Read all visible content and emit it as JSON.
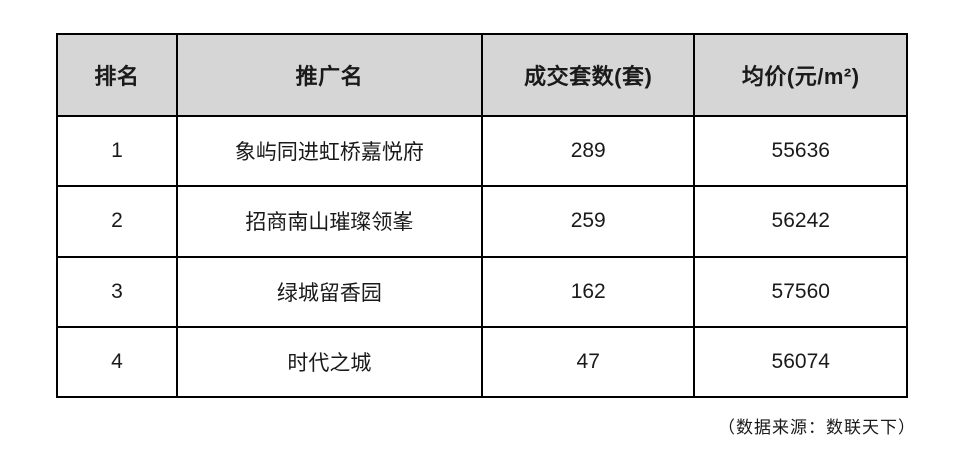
{
  "chart_data": {
    "type": "table",
    "title": "",
    "columns": [
      "排名",
      "推广名",
      "成交套数(套)",
      "均价(元/m²)"
    ],
    "rows": [
      {
        "rank": "1",
        "name": "象屿同进虹桥嘉悦府",
        "deals": "289",
        "price": "55636"
      },
      {
        "rank": "2",
        "name": "招商南山璀璨领峯",
        "deals": "259",
        "price": "56242"
      },
      {
        "rank": "3",
        "name": "绿城留香园",
        "deals": "162",
        "price": "57560"
      },
      {
        "rank": "4",
        "name": "时代之城",
        "deals": "47",
        "price": "56074"
      }
    ],
    "source_note": "（数据来源：数联天下）",
    "layout_hints": {
      "header_bg": "#d6d6d6",
      "border_color": "#000000",
      "text_color": "#1a1a1a",
      "background": "#ffffff"
    }
  },
  "table": {
    "headers": {
      "rank": "排名",
      "name": "推广名",
      "deals": "成交套数(套)",
      "price": "均价(元/m²)"
    },
    "rows": [
      {
        "rank": "1",
        "name": "象屿同进虹桥嘉悦府",
        "deals": "289",
        "price": "55636"
      },
      {
        "rank": "2",
        "name": "招商南山璀璨领峯",
        "deals": "259",
        "price": "56242"
      },
      {
        "rank": "3",
        "name": "绿城留香园",
        "deals": "162",
        "price": "57560"
      },
      {
        "rank": "4",
        "name": "时代之城",
        "deals": "47",
        "price": "56074"
      }
    ]
  },
  "footer": {
    "source": "（数据来源：数联天下）"
  }
}
